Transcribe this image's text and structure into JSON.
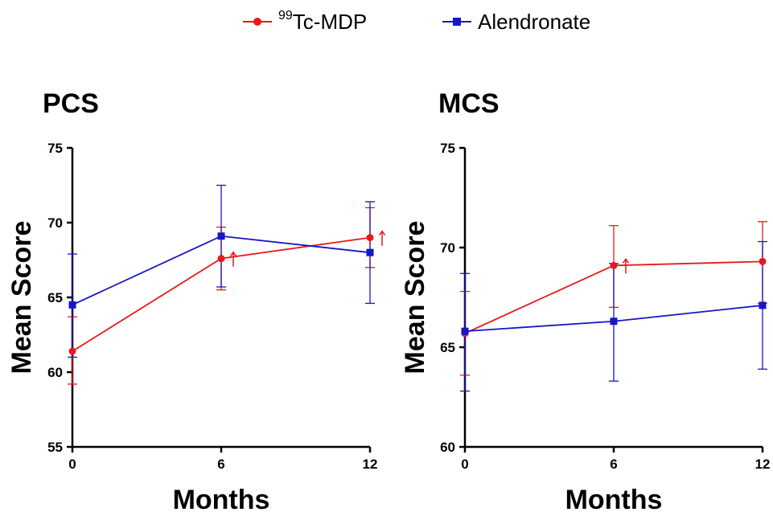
{
  "legend": {
    "series": [
      {
        "sup": "99",
        "label": "Tc-MDP",
        "color": "#e81919",
        "marker": "circle"
      },
      {
        "sup": "",
        "label": "Alendronate",
        "color": "#1616c4",
        "marker": "square"
      }
    ]
  },
  "chart_data": [
    {
      "type": "line",
      "title": "PCS",
      "xlabel": "Months",
      "ylabel": "Mean Score",
      "x": [
        0,
        6,
        12
      ],
      "xticks": [
        "0",
        "6",
        "12"
      ],
      "xlim": [
        0,
        12
      ],
      "ylim": [
        55,
        75
      ],
      "yticks": [
        55,
        60,
        65,
        70,
        75
      ],
      "grid": false,
      "series": [
        {
          "name": "Tc-MDP",
          "color": "#e81919",
          "marker": "circle",
          "values": [
            61.4,
            67.6,
            69.0
          ],
          "err_low": [
            59.2,
            65.5,
            67.0
          ],
          "err_high": [
            63.7,
            69.7,
            71.0
          ],
          "arrows": [
            false,
            true,
            true
          ]
        },
        {
          "name": "Alendronate",
          "color": "#1616c4",
          "marker": "square",
          "values": [
            64.5,
            69.1,
            68.0
          ],
          "err_low": [
            61.0,
            65.7,
            64.6
          ],
          "err_high": [
            67.9,
            72.5,
            71.4
          ],
          "arrows": [
            false,
            false,
            false
          ]
        }
      ]
    },
    {
      "type": "line",
      "title": "MCS",
      "xlabel": "Months",
      "ylabel": "Mean Score",
      "x": [
        0,
        6,
        12
      ],
      "xticks": [
        "0",
        "6",
        "12"
      ],
      "xlim": [
        0,
        12
      ],
      "ylim": [
        60,
        75
      ],
      "yticks": [
        60,
        65,
        70,
        75
      ],
      "grid": false,
      "series": [
        {
          "name": "Tc-MDP",
          "color": "#e81919",
          "marker": "circle",
          "values": [
            65.7,
            69.1,
            69.3
          ],
          "err_low": [
            63.6,
            67.0,
            67.2
          ],
          "err_high": [
            67.8,
            71.1,
            71.3
          ],
          "arrows": [
            false,
            true,
            false
          ]
        },
        {
          "name": "Alendronate",
          "color": "#1616c4",
          "marker": "square",
          "values": [
            65.8,
            66.3,
            67.1
          ],
          "err_low": [
            62.8,
            63.3,
            63.9
          ],
          "err_high": [
            68.7,
            69.2,
            70.3
          ],
          "arrows": [
            false,
            false,
            false
          ]
        }
      ]
    }
  ]
}
